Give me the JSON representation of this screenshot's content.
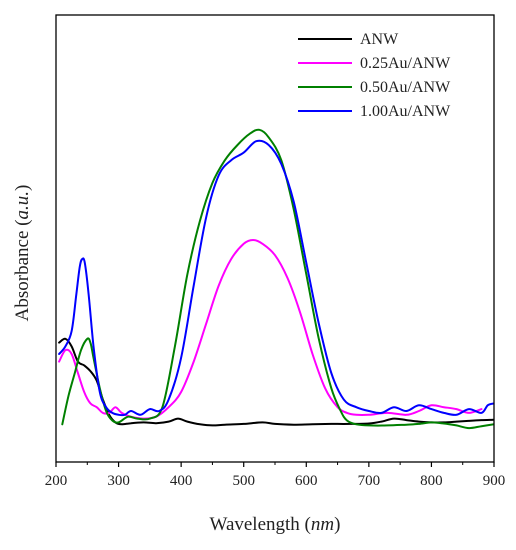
{
  "chart_data": {
    "type": "line",
    "title": "",
    "xlabel": {
      "main": "Wavelength (",
      "unit": "nm",
      "close": ")"
    },
    "ylabel": {
      "main": "Absorbance (",
      "unit": "a.u.",
      "close": ")"
    },
    "xlim": [
      200,
      900
    ],
    "xticks": [
      200,
      300,
      400,
      500,
      600,
      700,
      800,
      900
    ],
    "ylim": [
      0,
      1
    ],
    "y_ticks_shown": false,
    "grid": false,
    "legend_position": "top-right",
    "series": [
      {
        "name": "ANW",
        "color": "#000000",
        "x": [
          205,
          215,
          225,
          235,
          245,
          255,
          265,
          275,
          285,
          295,
          305,
          320,
          340,
          360,
          380,
          395,
          410,
          430,
          450,
          470,
          500,
          530,
          550,
          580,
          610,
          640,
          670,
          700,
          720,
          740,
          760,
          780,
          800,
          820,
          840,
          860,
          880,
          900
        ],
        "y": [
          0.23,
          0.24,
          0.22,
          0.18,
          0.17,
          0.155,
          0.13,
          0.08,
          0.04,
          0.02,
          0.015,
          0.018,
          0.02,
          0.018,
          0.022,
          0.03,
          0.022,
          0.015,
          0.012,
          0.014,
          0.016,
          0.02,
          0.016,
          0.014,
          0.015,
          0.016,
          0.016,
          0.017,
          0.022,
          0.03,
          0.026,
          0.022,
          0.02,
          0.02,
          0.022,
          0.024,
          0.026,
          0.027
        ]
      },
      {
        "name": "0.25Au/ANW",
        "color": "#ff00ff",
        "x": [
          205,
          215,
          225,
          235,
          245,
          255,
          265,
          275,
          285,
          295,
          305,
          320,
          340,
          360,
          380,
          400,
          420,
          440,
          460,
          480,
          500,
          515,
          530,
          550,
          570,
          590,
          610,
          630,
          650,
          665,
          680,
          700,
          730,
          760,
          780,
          800,
          820,
          840,
          860,
          880
        ],
        "y": [
          0.18,
          0.21,
          0.2,
          0.15,
          0.1,
          0.07,
          0.06,
          0.045,
          0.045,
          0.06,
          0.045,
          0.035,
          0.03,
          0.035,
          0.06,
          0.1,
          0.18,
          0.28,
          0.38,
          0.45,
          0.49,
          0.5,
          0.49,
          0.46,
          0.4,
          0.31,
          0.2,
          0.11,
          0.06,
          0.045,
          0.04,
          0.04,
          0.045,
          0.04,
          0.05,
          0.065,
          0.06,
          0.055,
          0.045,
          0.055
        ]
      },
      {
        "name": "0.50Au/ANW",
        "color": "#008000",
        "x": [
          210,
          220,
          230,
          240,
          250,
          255,
          260,
          270,
          280,
          290,
          300,
          315,
          330,
          350,
          370,
          390,
          410,
          430,
          450,
          470,
          490,
          510,
          525,
          540,
          560,
          580,
          600,
          620,
          640,
          655,
          665,
          680,
          700,
          730,
          760,
          780,
          800,
          820,
          840,
          860,
          880,
          900
        ],
        "y": [
          0.015,
          0.09,
          0.15,
          0.21,
          0.24,
          0.23,
          0.19,
          0.11,
          0.05,
          0.025,
          0.02,
          0.035,
          0.03,
          0.03,
          0.06,
          0.22,
          0.41,
          0.55,
          0.65,
          0.71,
          0.75,
          0.78,
          0.79,
          0.77,
          0.71,
          0.58,
          0.41,
          0.24,
          0.11,
          0.05,
          0.025,
          0.015,
          0.012,
          0.012,
          0.014,
          0.016,
          0.02,
          0.017,
          0.012,
          0.005,
          0.01,
          0.015
        ]
      },
      {
        "name": "1.00Au/ANW",
        "color": "#0000ff",
        "x": [
          205,
          215,
          225,
          232,
          238,
          242,
          246,
          252,
          260,
          270,
          280,
          290,
          300,
          310,
          320,
          335,
          350,
          365,
          380,
          400,
          420,
          440,
          460,
          480,
          500,
          520,
          540,
          560,
          580,
          600,
          620,
          640,
          660,
          680,
          700,
          720,
          740,
          760,
          780,
          800,
          820,
          840,
          860,
          880,
          890,
          900
        ],
        "y": [
          0.2,
          0.22,
          0.26,
          0.35,
          0.43,
          0.45,
          0.44,
          0.36,
          0.22,
          0.1,
          0.06,
          0.045,
          0.04,
          0.04,
          0.05,
          0.04,
          0.055,
          0.05,
          0.08,
          0.19,
          0.38,
          0.56,
          0.67,
          0.71,
          0.73,
          0.76,
          0.75,
          0.7,
          0.6,
          0.44,
          0.28,
          0.15,
          0.08,
          0.06,
          0.05,
          0.045,
          0.06,
          0.05,
          0.065,
          0.055,
          0.045,
          0.04,
          0.055,
          0.045,
          0.065,
          0.07
        ]
      }
    ]
  }
}
